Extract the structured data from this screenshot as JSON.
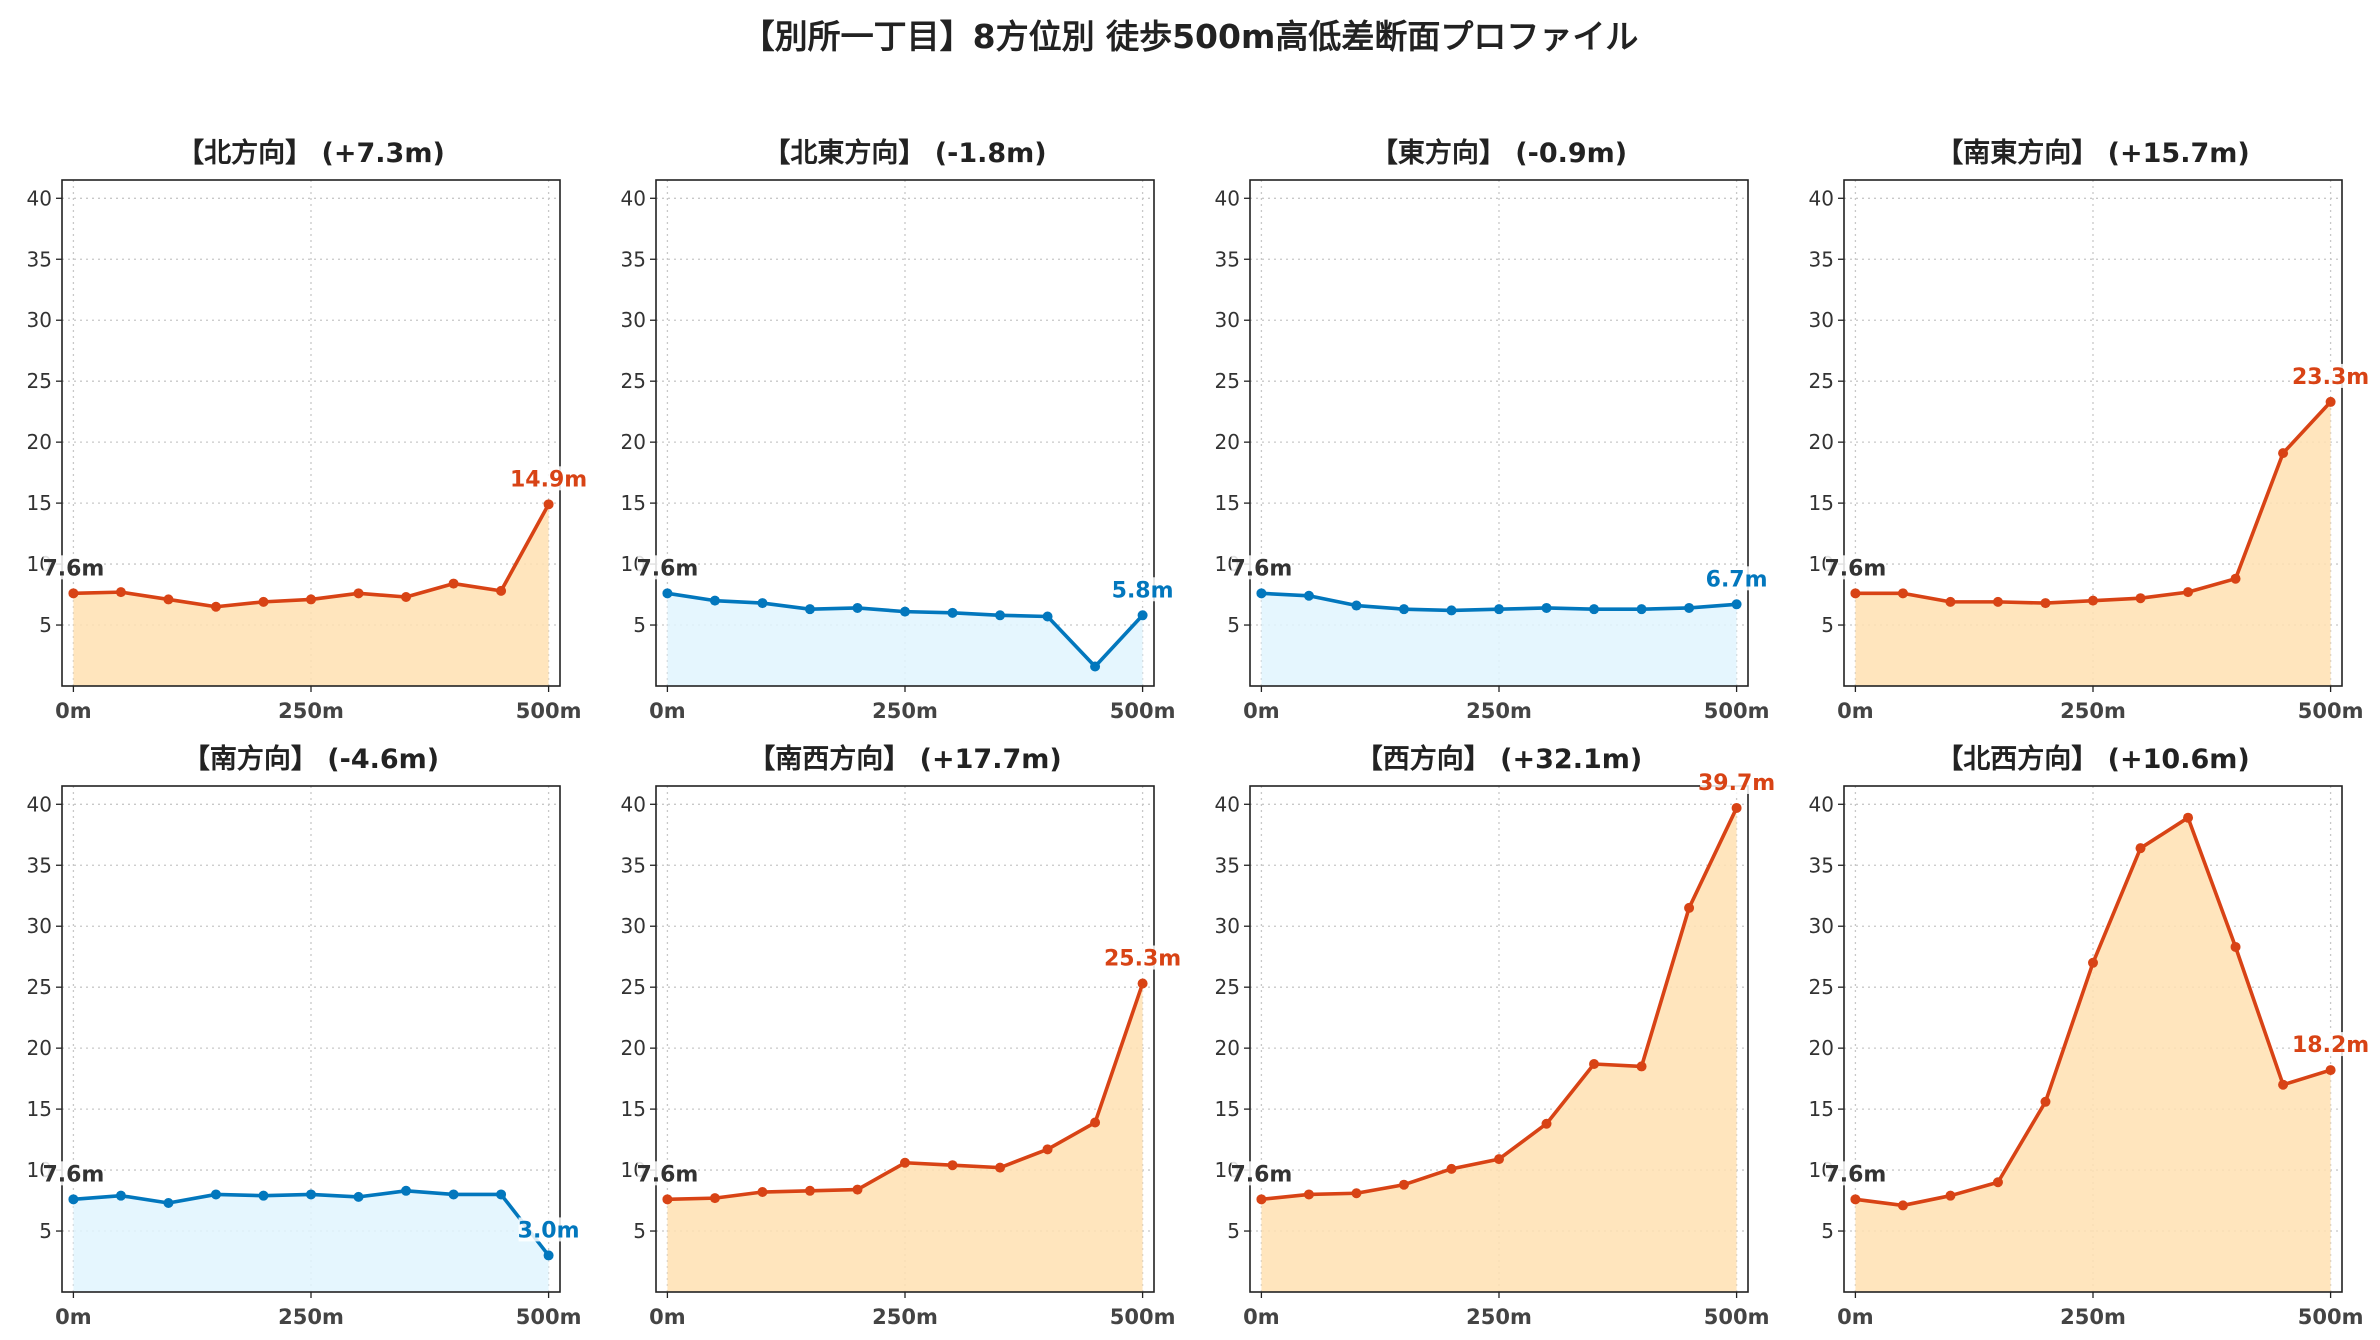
{
  "title": "【別所一丁目】8方位別 徒歩500m高低差断面プロファイル",
  "colors": {
    "up_line": "#d84315",
    "up_fill": "#ffe0b2",
    "down_line": "#0277bd",
    "down_fill": "#e1f5fe",
    "start_label": "#333333"
  },
  "chart_data": [
    {
      "type": "area",
      "title": "【北方向】 (+7.3m)",
      "trend": "up",
      "x": [
        0,
        50,
        100,
        150,
        200,
        250,
        300,
        350,
        400,
        450,
        500
      ],
      "values": [
        7.6,
        7.7,
        7.1,
        6.5,
        6.9,
        7.1,
        7.6,
        7.3,
        8.4,
        7.8,
        14.9
      ],
      "start_label": "7.6m",
      "end_label": "14.9m",
      "x_ticks": [
        "0m",
        "250m",
        "500m"
      ],
      "y_ticks": [
        "5",
        "10",
        "15",
        "20",
        "25",
        "30",
        "35",
        "40"
      ],
      "xlim": [
        -12,
        512
      ],
      "ylim": [
        0,
        41.5
      ],
      "grid": true
    },
    {
      "type": "area",
      "title": "【北東方向】 (-1.8m)",
      "trend": "down",
      "x": [
        0,
        50,
        100,
        150,
        200,
        250,
        300,
        350,
        400,
        450,
        500
      ],
      "values": [
        7.6,
        7.0,
        6.8,
        6.3,
        6.4,
        6.1,
        6.0,
        5.8,
        5.7,
        1.6,
        5.8
      ],
      "start_label": "7.6m",
      "end_label": "5.8m",
      "x_ticks": [
        "0m",
        "250m",
        "500m"
      ],
      "y_ticks": [
        "5",
        "10",
        "15",
        "20",
        "25",
        "30",
        "35",
        "40"
      ],
      "xlim": [
        -12,
        512
      ],
      "ylim": [
        0,
        41.5
      ],
      "grid": true
    },
    {
      "type": "area",
      "title": "【東方向】 (-0.9m)",
      "trend": "down",
      "x": [
        0,
        50,
        100,
        150,
        200,
        250,
        300,
        350,
        400,
        450,
        500
      ],
      "values": [
        7.6,
        7.4,
        6.6,
        6.3,
        6.2,
        6.3,
        6.4,
        6.3,
        6.3,
        6.4,
        6.7
      ],
      "start_label": "7.6m",
      "end_label": "6.7m",
      "x_ticks": [
        "0m",
        "250m",
        "500m"
      ],
      "y_ticks": [
        "5",
        "10",
        "15",
        "20",
        "25",
        "30",
        "35",
        "40"
      ],
      "xlim": [
        -12,
        512
      ],
      "ylim": [
        0,
        41.5
      ],
      "grid": true
    },
    {
      "type": "area",
      "title": "【南東方向】 (+15.7m)",
      "trend": "up",
      "x": [
        0,
        50,
        100,
        150,
        200,
        250,
        300,
        350,
        400,
        450,
        500
      ],
      "values": [
        7.6,
        7.6,
        6.9,
        6.9,
        6.8,
        7.0,
        7.2,
        7.7,
        8.8,
        19.1,
        23.3
      ],
      "start_label": "7.6m",
      "end_label": "23.3m",
      "x_ticks": [
        "0m",
        "250m",
        "500m"
      ],
      "y_ticks": [
        "5",
        "10",
        "15",
        "20",
        "25",
        "30",
        "35",
        "40"
      ],
      "xlim": [
        -12,
        512
      ],
      "ylim": [
        0,
        41.5
      ],
      "grid": true
    },
    {
      "type": "area",
      "title": "【南方向】 (-4.6m)",
      "trend": "down",
      "x": [
        0,
        50,
        100,
        150,
        200,
        250,
        300,
        350,
        400,
        450,
        500
      ],
      "values": [
        7.6,
        7.9,
        7.3,
        8.0,
        7.9,
        8.0,
        7.8,
        8.3,
        8.0,
        8.0,
        3.0
      ],
      "start_label": "7.6m",
      "end_label": "3.0m",
      "x_ticks": [
        "0m",
        "250m",
        "500m"
      ],
      "y_ticks": [
        "5",
        "10",
        "15",
        "20",
        "25",
        "30",
        "35",
        "40"
      ],
      "xlim": [
        -12,
        512
      ],
      "ylim": [
        0,
        41.5
      ],
      "grid": true
    },
    {
      "type": "area",
      "title": "【南西方向】 (+17.7m)",
      "trend": "up",
      "x": [
        0,
        50,
        100,
        150,
        200,
        250,
        300,
        350,
        400,
        450,
        500
      ],
      "values": [
        7.6,
        7.7,
        8.2,
        8.3,
        8.4,
        10.6,
        10.4,
        10.2,
        11.7,
        13.9,
        25.3
      ],
      "start_label": "7.6m",
      "end_label": "25.3m",
      "x_ticks": [
        "0m",
        "250m",
        "500m"
      ],
      "y_ticks": [
        "5",
        "10",
        "15",
        "20",
        "25",
        "30",
        "35",
        "40"
      ],
      "xlim": [
        -12,
        512
      ],
      "ylim": [
        0,
        41.5
      ],
      "grid": true
    },
    {
      "type": "area",
      "title": "【西方向】 (+32.1m)",
      "trend": "up",
      "x": [
        0,
        50,
        100,
        150,
        200,
        250,
        300,
        350,
        400,
        450,
        500
      ],
      "values": [
        7.6,
        8.0,
        8.1,
        8.8,
        10.1,
        10.9,
        13.8,
        18.7,
        18.5,
        31.5,
        39.7
      ],
      "start_label": "7.6m",
      "end_label": "39.7m",
      "x_ticks": [
        "0m",
        "250m",
        "500m"
      ],
      "y_ticks": [
        "5",
        "10",
        "15",
        "20",
        "25",
        "30",
        "35",
        "40"
      ],
      "xlim": [
        -12,
        512
      ],
      "ylim": [
        0,
        41.5
      ],
      "grid": true
    },
    {
      "type": "area",
      "title": "【北西方向】 (+10.6m)",
      "trend": "up",
      "x": [
        0,
        50,
        100,
        150,
        200,
        250,
        300,
        350,
        400,
        450,
        500
      ],
      "values": [
        7.6,
        7.1,
        7.9,
        9.0,
        15.6,
        27.0,
        36.4,
        38.9,
        28.3,
        17.0,
        18.2
      ],
      "start_label": "7.6m",
      "end_label": "18.2m",
      "x_ticks": [
        "0m",
        "250m",
        "500m"
      ],
      "y_ticks": [
        "5",
        "10",
        "15",
        "20",
        "25",
        "30",
        "35",
        "40"
      ],
      "xlim": [
        -12,
        512
      ],
      "ylim": [
        0,
        41.5
      ],
      "grid": true
    }
  ]
}
